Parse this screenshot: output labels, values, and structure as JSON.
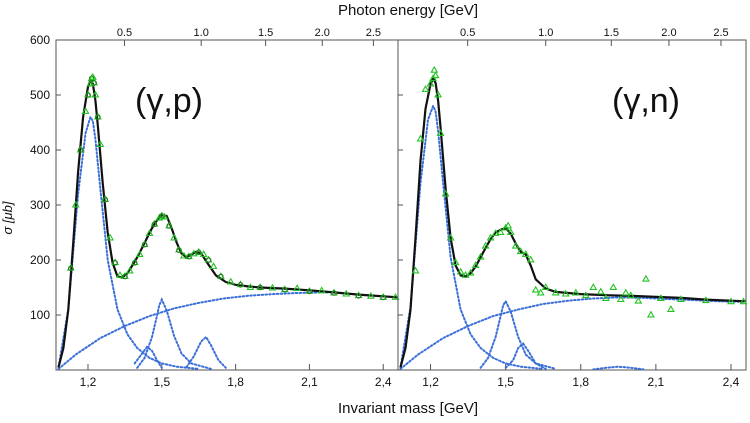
{
  "chart_data": {
    "type": "line",
    "top_axis_title": "Photon energy [GeV]",
    "xlabel": "Invariant mass [GeV]",
    "ylabel": "σ [μb]",
    "xlim": [
      1.07,
      2.46
    ],
    "ylim": [
      0,
      600
    ],
    "x_ticks": [
      1.2,
      1.5,
      1.8,
      2.1,
      2.4
    ],
    "x_tick_labels": [
      "1,2",
      "1,5",
      "1,8",
      "2,1",
      "2,4"
    ],
    "y_ticks": [
      100,
      200,
      300,
      400,
      500,
      600
    ],
    "y_tick_labels": [
      "100",
      "200",
      "300",
      "400",
      "500",
      "600"
    ],
    "top_ticks": [
      0.5,
      1.0,
      1.5,
      2.0,
      2.5
    ],
    "top_tick_labels": [
      "0.5",
      "1.0",
      "1.5",
      "2.0",
      "2.5"
    ],
    "nucleon_mass_gev": 0.938,
    "grid": false,
    "line_color": "#111111",
    "resonance_color": "#3a6fd8",
    "data_color": "#22c322",
    "panels": [
      {
        "label": "(γ,p)",
        "marker": "triangle+circle",
        "total_curve": {
          "x": [
            1.08,
            1.1,
            1.12,
            1.14,
            1.16,
            1.18,
            1.2,
            1.21,
            1.22,
            1.23,
            1.24,
            1.26,
            1.28,
            1.3,
            1.32,
            1.34,
            1.36,
            1.38,
            1.4,
            1.42,
            1.44,
            1.46,
            1.48,
            1.5,
            1.52,
            1.54,
            1.56,
            1.58,
            1.6,
            1.62,
            1.64,
            1.66,
            1.68,
            1.7,
            1.72,
            1.76,
            1.8,
            1.85,
            1.9,
            2.0,
            2.1,
            2.2,
            2.3,
            2.4,
            2.46
          ],
          "y": [
            5,
            40,
            110,
            230,
            360,
            460,
            515,
            527,
            520,
            490,
            445,
            340,
            250,
            195,
            170,
            168,
            176,
            190,
            205,
            222,
            240,
            258,
            272,
            282,
            280,
            258,
            232,
            212,
            205,
            210,
            215,
            212,
            198,
            185,
            172,
            160,
            155,
            152,
            150,
            148,
            145,
            141,
            137,
            134,
            132
          ]
        },
        "resonances": [
          {
            "x": [
              1.08,
              1.12,
              1.16,
              1.19,
              1.21,
              1.22,
              1.23,
              1.25,
              1.28,
              1.32,
              1.36,
              1.4,
              1.45,
              1.5,
              1.56,
              1.65
            ],
            "y": [
              5,
              110,
              320,
              430,
              460,
              452,
              420,
              330,
              200,
              110,
              65,
              40,
              22,
              12,
              6,
              2
            ]
          },
          {
            "x": [
              1.4,
              1.43,
              1.46,
              1.48,
              1.49,
              1.5,
              1.52,
              1.55,
              1.58,
              1.62,
              1.7
            ],
            "y": [
              4,
              22,
              60,
              98,
              118,
              128,
              108,
              62,
              30,
              12,
              2
            ]
          },
          {
            "x": [
              1.39,
              1.42,
              1.44,
              1.46,
              1.48,
              1.5
            ],
            "y": [
              12,
              30,
              42,
              35,
              18,
              4
            ]
          },
          {
            "x": [
              1.6,
              1.63,
              1.66,
              1.68,
              1.7,
              1.73,
              1.76
            ],
            "y": [
              5,
              25,
              52,
              60,
              45,
              18,
              4
            ]
          },
          {
            "x": [
              1.08,
              1.15,
              1.25,
              1.35,
              1.45,
              1.55,
              1.65,
              1.75,
              1.85,
              1.95,
              2.05,
              2.15,
              2.2
            ],
            "y": [
              2,
              28,
              58,
              80,
              98,
              112,
              122,
              130,
              135,
              138,
              140,
              141,
              141
            ]
          }
        ],
        "data_points": {
          "x": [
            1.13,
            1.15,
            1.17,
            1.19,
            1.2,
            1.21,
            1.215,
            1.22,
            1.225,
            1.23,
            1.24,
            1.25,
            1.27,
            1.29,
            1.31,
            1.33,
            1.35,
            1.37,
            1.39,
            1.41,
            1.43,
            1.45,
            1.47,
            1.49,
            1.5,
            1.51,
            1.53,
            1.55,
            1.57,
            1.59,
            1.61,
            1.63,
            1.65,
            1.67,
            1.69,
            1.71,
            1.74,
            1.78,
            1.82,
            1.86,
            1.9,
            1.95,
            2.0,
            2.05,
            2.1,
            2.15,
            2.2,
            2.25,
            2.3,
            2.35,
            2.4,
            2.45
          ],
          "y": [
            185,
            300,
            400,
            470,
            500,
            520,
            530,
            532,
            522,
            500,
            460,
            410,
            310,
            240,
            195,
            172,
            170,
            180,
            195,
            210,
            228,
            248,
            265,
            276,
            280,
            278,
            262,
            240,
            218,
            207,
            206,
            211,
            214,
            210,
            200,
            188,
            170,
            160,
            155,
            150,
            150,
            149,
            146,
            148,
            143,
            144,
            140,
            138,
            135,
            134,
            132,
            132
          ]
        }
      },
      {
        "label": "(γ,n)",
        "marker": "triangle",
        "total_curve": {
          "x": [
            1.08,
            1.1,
            1.12,
            1.14,
            1.16,
            1.18,
            1.2,
            1.21,
            1.22,
            1.23,
            1.24,
            1.26,
            1.28,
            1.3,
            1.32,
            1.34,
            1.36,
            1.38,
            1.4,
            1.42,
            1.44,
            1.46,
            1.48,
            1.5,
            1.52,
            1.54,
            1.56,
            1.58,
            1.6,
            1.62,
            1.66,
            1.7,
            1.75,
            1.8,
            1.9,
            2.0,
            2.1,
            2.2,
            2.3,
            2.4,
            2.46
          ],
          "y": [
            5,
            40,
            110,
            240,
            380,
            475,
            520,
            530,
            522,
            490,
            440,
            330,
            240,
            190,
            172,
            170,
            176,
            188,
            205,
            222,
            238,
            250,
            255,
            258,
            248,
            230,
            215,
            210,
            190,
            165,
            148,
            142,
            140,
            138,
            136,
            135,
            133,
            131,
            128,
            126,
            125
          ]
        },
        "resonances": [
          {
            "x": [
              1.08,
              1.12,
              1.16,
              1.19,
              1.21,
              1.22,
              1.23,
              1.25,
              1.28,
              1.32,
              1.36,
              1.4,
              1.45,
              1.5,
              1.56,
              1.65
            ],
            "y": [
              5,
              115,
              340,
              455,
              480,
              470,
              435,
              340,
              205,
              110,
              65,
              40,
              22,
              12,
              6,
              2
            ]
          },
          {
            "x": [
              1.4,
              1.43,
              1.46,
              1.48,
              1.49,
              1.5,
              1.52,
              1.55,
              1.58,
              1.62,
              1.7
            ],
            "y": [
              4,
              22,
              60,
              98,
              118,
              125,
              106,
              60,
              28,
              12,
              2
            ]
          },
          {
            "x": [
              1.5,
              1.53,
              1.55,
              1.57,
              1.59,
              1.62,
              1.66
            ],
            "y": [
              4,
              18,
              40,
              48,
              35,
              12,
              2
            ]
          },
          {
            "x": [
              1.85,
              1.9,
              1.95,
              2.0,
              2.05
            ],
            "y": [
              1,
              4,
              6,
              4,
              1
            ]
          },
          {
            "x": [
              1.08,
              1.15,
              1.25,
              1.35,
              1.45,
              1.55,
              1.65,
              1.75,
              1.85,
              1.95,
              2.05,
              2.15,
              2.25,
              2.35,
              2.45
            ],
            "y": [
              2,
              28,
              58,
              80,
              98,
              110,
              120,
              126,
              130,
              132,
              131,
              129,
              127,
              125,
              124
            ]
          }
        ],
        "data_points": {
          "x": [
            1.14,
            1.16,
            1.18,
            1.2,
            1.21,
            1.215,
            1.22,
            1.23,
            1.24,
            1.26,
            1.28,
            1.3,
            1.32,
            1.34,
            1.36,
            1.38,
            1.4,
            1.42,
            1.44,
            1.46,
            1.48,
            1.5,
            1.51,
            1.52,
            1.54,
            1.56,
            1.58,
            1.6,
            1.62,
            1.64,
            1.66,
            1.7,
            1.74,
            1.78,
            1.82,
            1.85,
            1.88,
            1.9,
            1.93,
            1.96,
            1.98,
            2.0,
            2.03,
            2.06,
            2.08,
            2.12,
            2.16,
            2.2,
            2.3,
            2.4,
            2.45
          ],
          "y": [
            180,
            420,
            510,
            520,
            530,
            545,
            535,
            500,
            430,
            320,
            240,
            195,
            178,
            172,
            176,
            190,
            205,
            225,
            240,
            248,
            250,
            258,
            262,
            250,
            225,
            215,
            210,
            200,
            145,
            140,
            150,
            140,
            138,
            140,
            135,
            150,
            142,
            130,
            150,
            128,
            140,
            135,
            125,
            165,
            100,
            130,
            110,
            128,
            126,
            124,
            124
          ]
        }
      }
    ]
  }
}
